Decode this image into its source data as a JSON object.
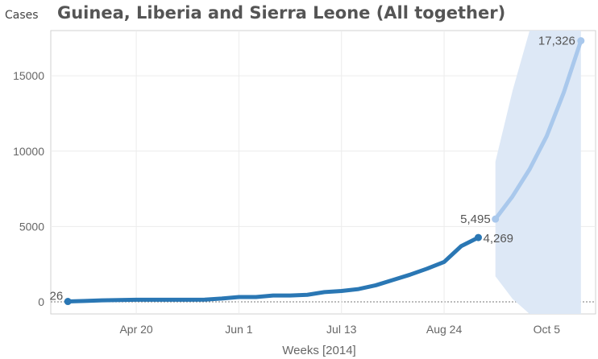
{
  "chart_data": {
    "type": "line",
    "title": "Guinea, Liberia and Sierra Leone (All together)",
    "ylabel": "Cases",
    "xlabel": "Weeks [2014]",
    "ylim": [
      -800,
      18000
    ],
    "yticks": [
      0,
      5000,
      10000,
      15000
    ],
    "xticks": [
      "Apr 20",
      "Jun 1",
      "Jul 13",
      "Aug 24",
      "Oct 5"
    ],
    "grid": true,
    "series": [
      {
        "kind": "observed",
        "color": "#2a77b4",
        "x": [
          "2014-03-23",
          "2014-03-30",
          "2014-04-06",
          "2014-04-13",
          "2014-04-20",
          "2014-04-27",
          "2014-05-04",
          "2014-05-11",
          "2014-05-18",
          "2014-05-25",
          "2014-06-01",
          "2014-06-08",
          "2014-06-15",
          "2014-06-22",
          "2014-06-29",
          "2014-07-06",
          "2014-07-13",
          "2014-07-20",
          "2014-07-27",
          "2014-08-03",
          "2014-08-10",
          "2014-08-17",
          "2014-08-24",
          "2014-08-31",
          "2014-09-07"
        ],
        "y": [
          26,
          60,
          100,
          120,
          140,
          140,
          140,
          140,
          150,
          220,
          320,
          320,
          420,
          420,
          470,
          650,
          720,
          850,
          1100,
          1450,
          1800,
          2200,
          2650,
          3700,
          4269
        ]
      },
      {
        "kind": "projection",
        "color": "#a9c8ec",
        "x": [
          "2014-09-14",
          "2014-09-21",
          "2014-09-28",
          "2014-10-05",
          "2014-10-12",
          "2014-10-19"
        ],
        "y": [
          5495,
          7000,
          8800,
          11000,
          13900,
          17326
        ]
      }
    ],
    "band": {
      "color": "#dde8f6",
      "x": [
        "2014-09-14",
        "2014-09-21",
        "2014-09-28",
        "2014-10-05",
        "2014-10-12",
        "2014-10-19"
      ],
      "upper": [
        9300,
        14000,
        18000,
        18000,
        18000,
        18000
      ],
      "lower": [
        1700,
        200,
        -800,
        -800,
        -800,
        -800
      ]
    },
    "data_labels": [
      {
        "x": "2014-03-23",
        "y": 26,
        "text": "26"
      },
      {
        "x": "2014-09-07",
        "y": 4269,
        "text": "4,269"
      },
      {
        "x": "2014-09-14",
        "y": 5495,
        "text": "5,495"
      },
      {
        "x": "2014-10-19",
        "y": 17326,
        "text": "17,326"
      }
    ]
  }
}
